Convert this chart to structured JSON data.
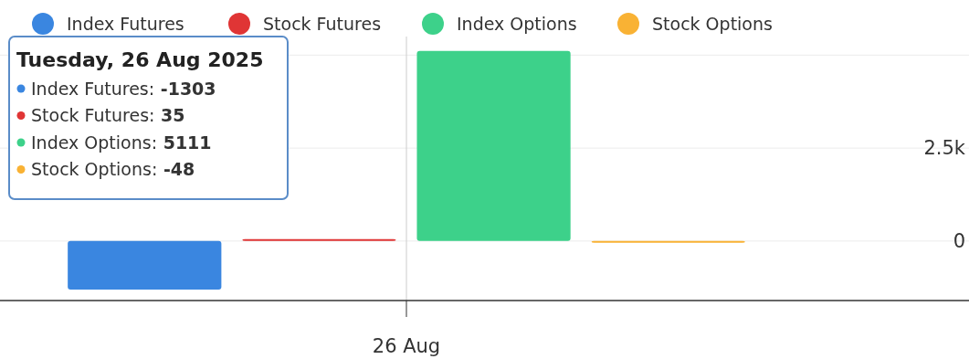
{
  "chart_data": {
    "type": "bar",
    "categories": [
      "26 Aug"
    ],
    "series": [
      {
        "name": "Index Futures",
        "color": "#3a86e0",
        "values": [
          -1303
        ]
      },
      {
        "name": "Stock Futures",
        "color": "#e03535",
        "values": [
          35
        ]
      },
      {
        "name": "Index Options",
        "color": "#3dd18a",
        "values": [
          5111
        ]
      },
      {
        "name": "Stock Options",
        "color": "#f9b234",
        "values": [
          -48
        ]
      }
    ],
    "ylim": [
      -1600,
      5500
    ],
    "yticks": [
      0,
      {
        "value": 2500,
        "label": "2.5k"
      },
      {
        "value": 5000,
        "label": null
      }
    ],
    "grid": "y",
    "ref_lines": [
      {
        "axis": "x",
        "value": "26 Aug",
        "color": "#cccccc"
      }
    ],
    "legend": "top left",
    "annotations": [
      "Tuesday, 26 Aug 2025",
      "Index Futures: -1303",
      "Stock Futures: 35",
      "Index Options: 5111",
      "Stock Options: -48"
    ]
  }
}
